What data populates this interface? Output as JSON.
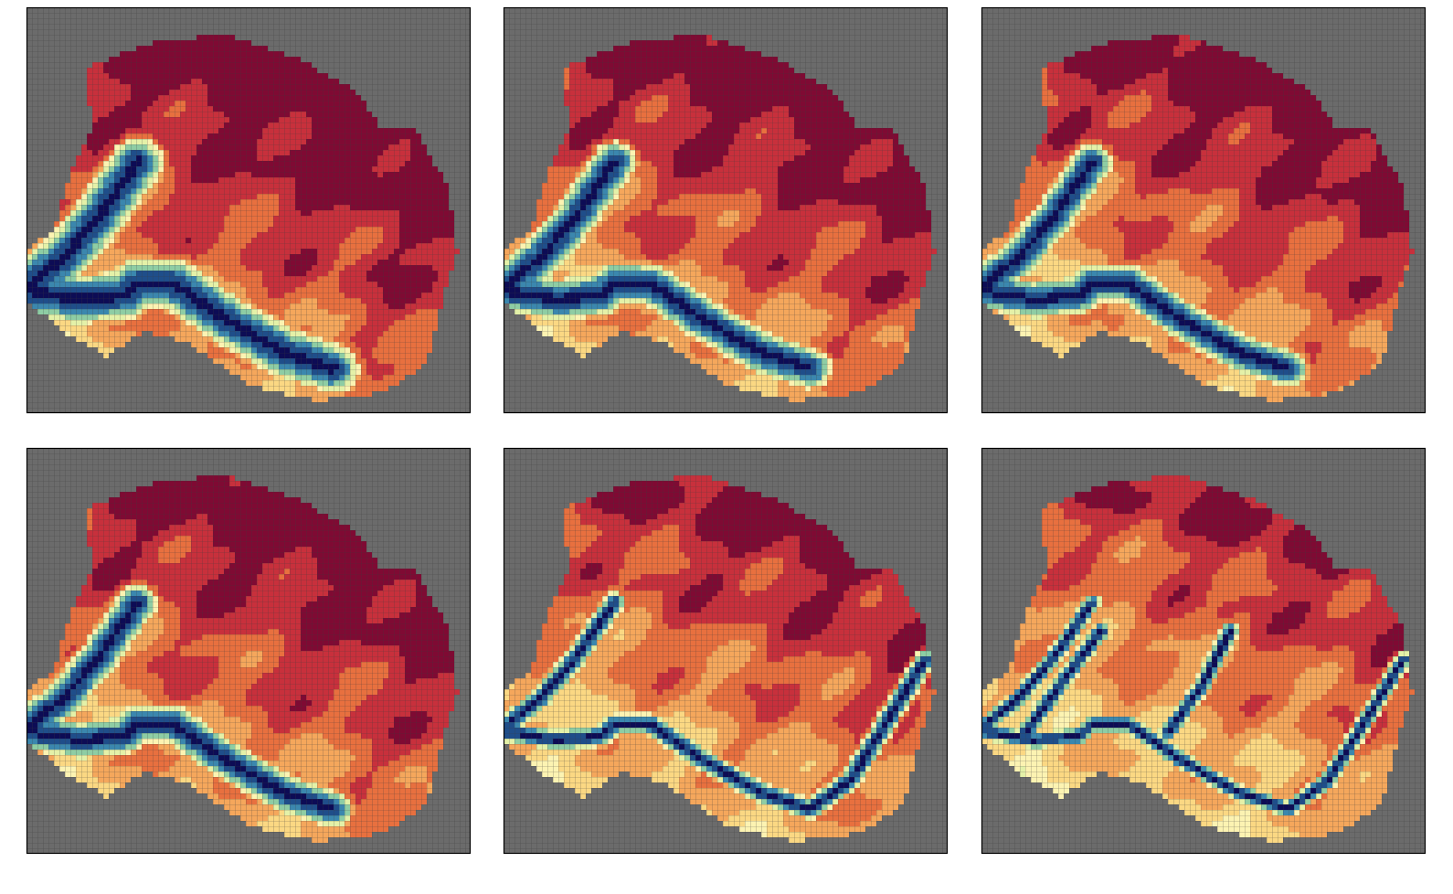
{
  "palette": [
    "#0d0c55",
    "#1f4e8a",
    "#3b87ae",
    "#8ecda4",
    "#e4f1a8",
    "#fcf3b2",
    "#fbd883",
    "#f5a75c",
    "#e8703f",
    "#c8303c",
    "#7f0a33"
  ],
  "background": "#6b6b6b",
  "grid_color": "#3a3a3a"
}
